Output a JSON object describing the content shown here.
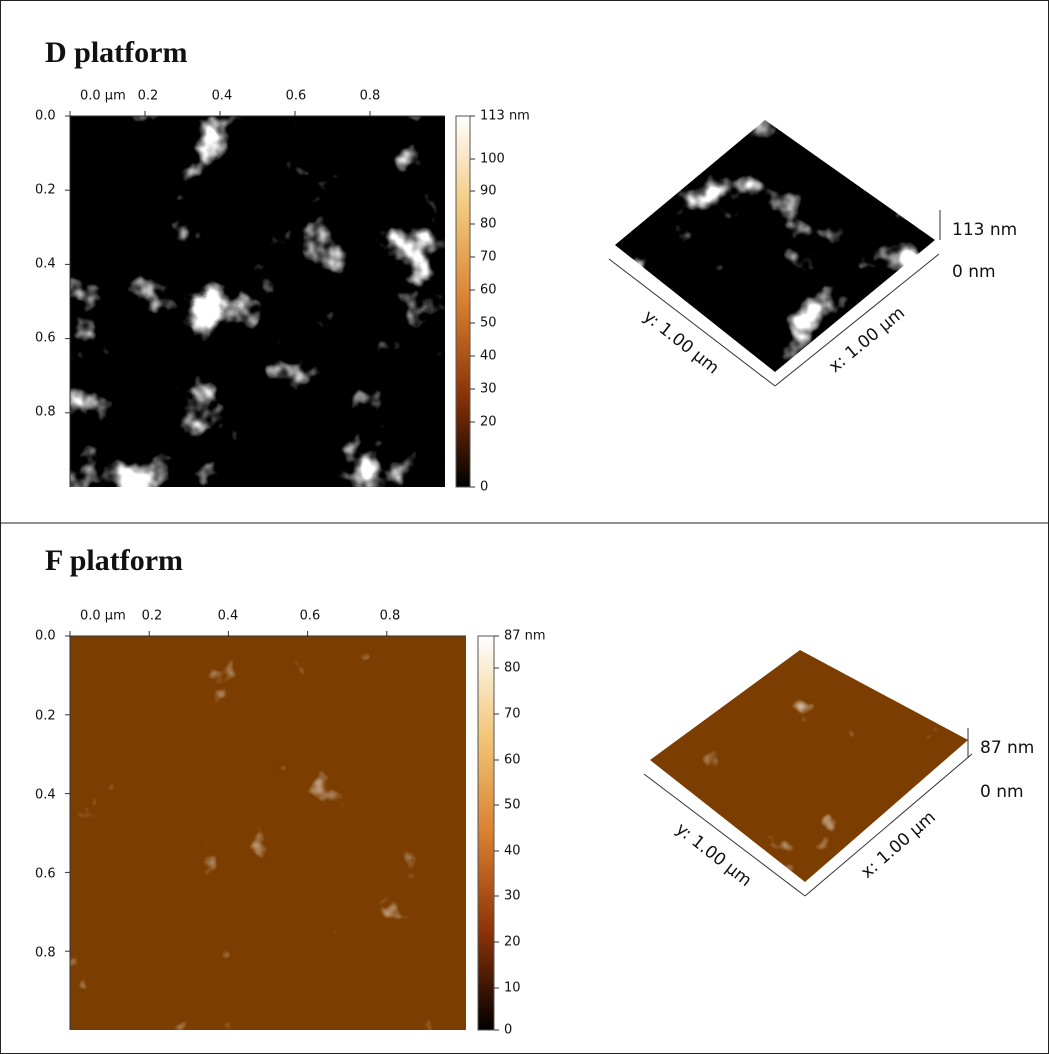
{
  "panels": [
    {
      "title": "D platform",
      "x_ticks": [
        "0.0 µm",
        "0.2",
        "0.4",
        "0.6",
        "0.8"
      ],
      "y_ticks": [
        "0.0",
        "0.2",
        "0.4",
        "0.6",
        "0.8"
      ],
      "colorbar_ticks": [
        "113 nm",
        "100",
        "90",
        "80",
        "70",
        "60",
        "50",
        "40",
        "30",
        "20",
        "0"
      ],
      "view_3d": {
        "y_axis": "y: 1.00 µm",
        "x_axis": "x: 1.00 µm",
        "z_max": "113 nm",
        "z_min": "0 nm"
      }
    },
    {
      "title": "F platform",
      "x_ticks": [
        "0.0 µm",
        "0.2",
        "0.4",
        "0.6",
        "0.8"
      ],
      "y_ticks": [
        "0.0",
        "0.2",
        "0.4",
        "0.6",
        "0.8"
      ],
      "colorbar_ticks": [
        "87 nm",
        "80",
        "70",
        "60",
        "50",
        "40",
        "30",
        "20",
        "10",
        "0"
      ],
      "view_3d": {
        "y_axis": "y: 1.00 µm",
        "x_axis": "x: 1.00 µm",
        "z_max": "87 nm",
        "z_min": "0 nm"
      }
    }
  ]
}
